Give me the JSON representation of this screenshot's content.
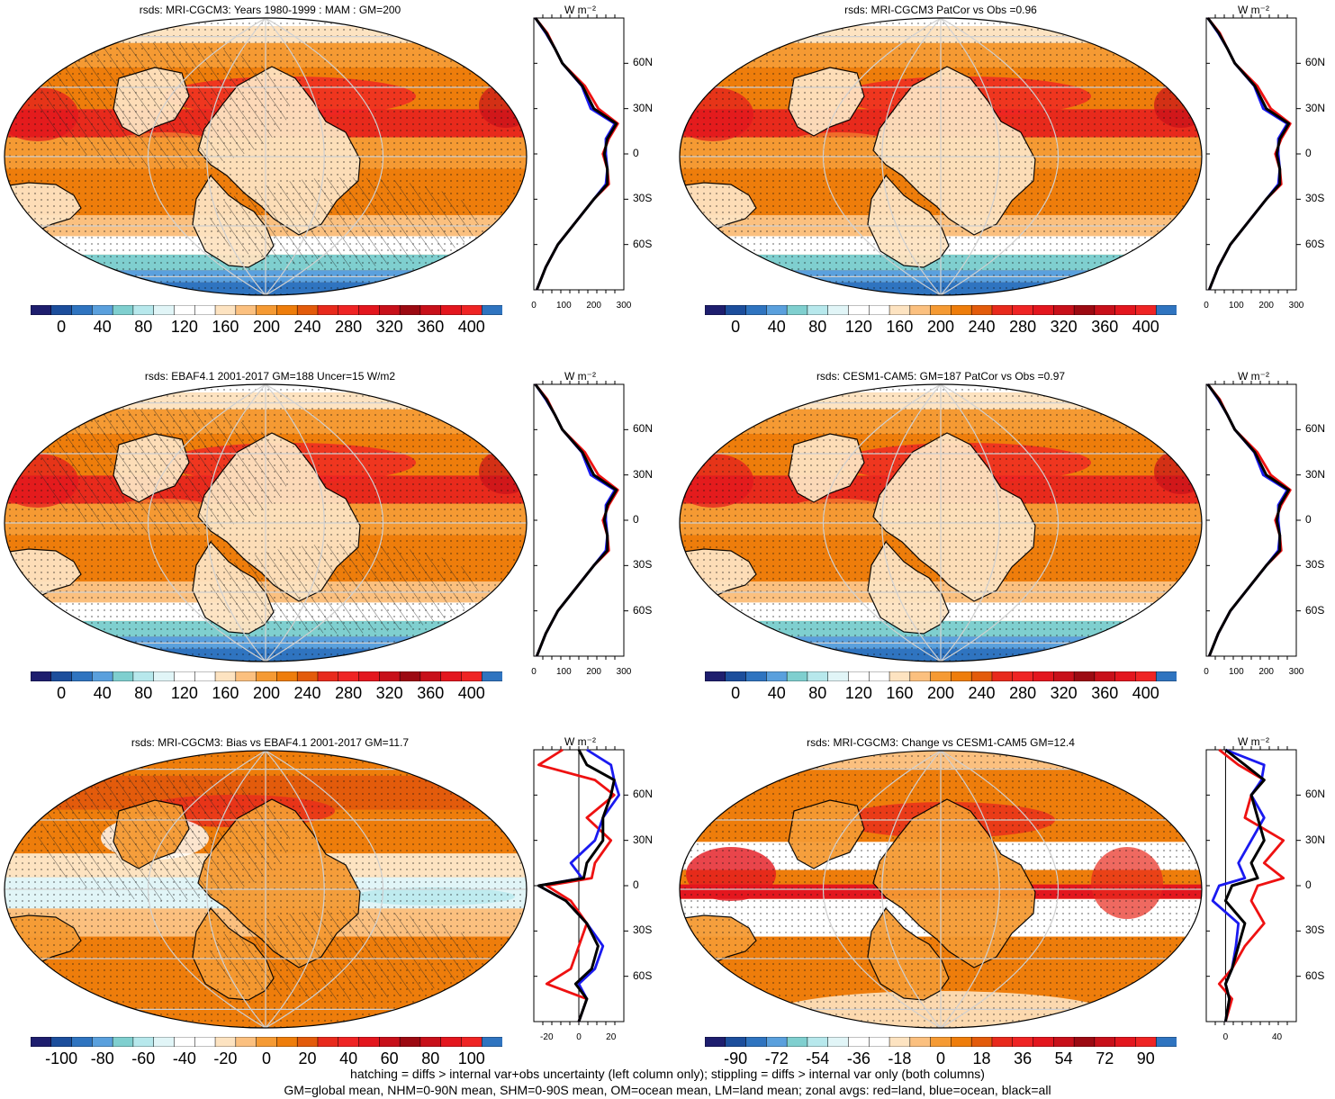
{
  "panels": [
    {
      "title": "rsds: MRI-CGCM3: Years 1980-1999 : MAM : GM=200",
      "type": "abs",
      "variant": 1,
      "hatch": true,
      "cbar": "abs",
      "prof_ticks": [
        "0",
        "100",
        "200",
        "300"
      ]
    },
    {
      "title": "rsds: MRI-CGCM3 PatCor vs Obs =0.96",
      "type": "abs",
      "variant": 2,
      "hatch": false,
      "cbar": "abs",
      "prof_ticks": [
        "0",
        "100",
        "200",
        "300"
      ]
    },
    {
      "title": "rsds: EBAF4.1 2001-2017 GM=188 Uncer=15 W/m2",
      "type": "abs",
      "variant": 3,
      "hatch": true,
      "cbar": "abs",
      "prof_ticks": [
        "0",
        "100",
        "200",
        "300"
      ]
    },
    {
      "title": "rsds: CESM1-CAM5: GM=187 PatCor vs Obs =0.97",
      "type": "abs",
      "variant": 4,
      "hatch": false,
      "cbar": "abs",
      "prof_ticks": [
        "0",
        "100",
        "200",
        "300"
      ]
    },
    {
      "title": "rsds: MRI-CGCM3: Bias vs EBAF4.1 2001-2017 GM=11.7",
      "type": "bias",
      "variant": 5,
      "hatch": true,
      "cbar": "bias",
      "prof_ticks": [
        "-20",
        "0",
        "20"
      ]
    },
    {
      "title": "rsds: MRI-CGCM3: Change vs CESM1-CAM5 GM=12.4",
      "type": "chg",
      "variant": 6,
      "hatch": false,
      "cbar": "chg",
      "prof_ticks": [
        "0",
        "40"
      ]
    }
  ],
  "profile_unit": "W m⁻²",
  "lat_labels": [
    "60N",
    "30N",
    "0",
    "30S",
    "60S"
  ],
  "colorbars": {
    "abs": {
      "labels": [
        "0",
        "40",
        "80",
        "120",
        "160",
        "200",
        "240",
        "280",
        "320",
        "360",
        "400"
      ],
      "colors": [
        "#1e1e6e",
        "#1c4e9c",
        "#2f74c0",
        "#5aa0dd",
        "#7fcfcf",
        "#b7e8ec",
        "#e1f5f7",
        "#ffffff",
        "#ffffff",
        "#fde3c1",
        "#fbc07f",
        "#f59a33",
        "#ee7d0b",
        "#e35b0b",
        "#e82a1c",
        "#ef2424",
        "#e3161e",
        "#c8101a",
        "#9c0a12",
        "#c8101a",
        "#e3161e",
        "#ef2424",
        "#2f74c0"
      ]
    },
    "bias": {
      "labels": [
        "-100",
        "-80",
        "-60",
        "-40",
        "-20",
        "0",
        "20",
        "40",
        "60",
        "80",
        "100"
      ],
      "colors": [
        "#1e1e6e",
        "#1c4e9c",
        "#2f74c0",
        "#5aa0dd",
        "#7fcfcf",
        "#b7e8ec",
        "#e1f5f7",
        "#ffffff",
        "#ffffff",
        "#fde3c1",
        "#fbc07f",
        "#f59a33",
        "#ee7d0b",
        "#e35b0b",
        "#e82a1c",
        "#ef2424",
        "#e3161e",
        "#c8101a",
        "#9c0a12",
        "#c8101a",
        "#e3161e",
        "#ef2424",
        "#2f74c0"
      ]
    },
    "chg": {
      "labels": [
        "-90",
        "-72",
        "-54",
        "-36",
        "-18",
        "0",
        "18",
        "36",
        "54",
        "72",
        "90"
      ],
      "colors": [
        "#1e1e6e",
        "#1c4e9c",
        "#2f74c0",
        "#5aa0dd",
        "#7fcfcf",
        "#b7e8ec",
        "#e1f5f7",
        "#ffffff",
        "#ffffff",
        "#fde3c1",
        "#fbc07f",
        "#f59a33",
        "#ee7d0b",
        "#e35b0b",
        "#e82a1c",
        "#ef2424",
        "#e3161e",
        "#c8101a",
        "#9c0a12",
        "#c8101a",
        "#e3161e",
        "#ef2424",
        "#2f74c0"
      ]
    }
  },
  "series_colors": {
    "land": "#ee1111",
    "ocean": "#1a1af0",
    "all": "#000000"
  },
  "footer": {
    "line1": "hatching = diffs > internal var+obs uncertainty (left column only); stippling = diffs > internal var only (both columns)",
    "line2": "GM=global mean, NHM=0-90N mean, SHM=0-90S mean, OM=ocean mean, LM=land mean; zonal avgs: red=land, blue=ocean, black=all"
  }
}
